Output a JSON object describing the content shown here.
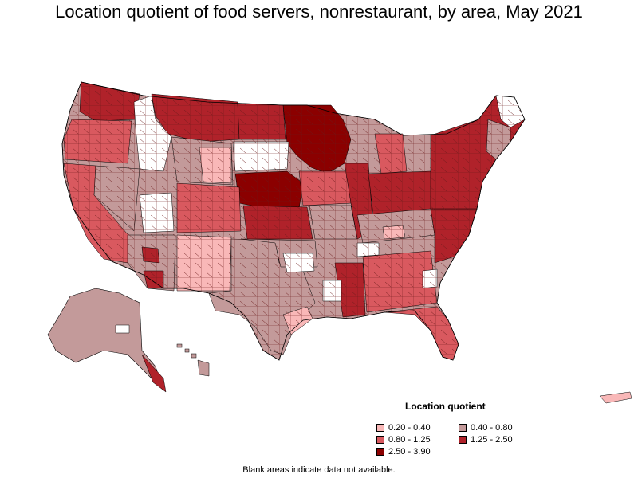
{
  "title": "Location quotient of food servers, nonrestaurant, by area, May 2021",
  "legend": {
    "title": "Location quotient",
    "items": [
      {
        "label": "0.20 - 0.40",
        "color": "#f9b8b8"
      },
      {
        "label": "0.40 - 0.80",
        "color": "#c39a9a"
      },
      {
        "label": "0.80 - 1.25",
        "color": "#d9595f"
      },
      {
        "label": "1.25 - 2.50",
        "color": "#b0222a"
      },
      {
        "label": "2.50 - 3.90",
        "color": "#8b0000"
      }
    ]
  },
  "footnote": "Blank areas indicate data not available."
}
